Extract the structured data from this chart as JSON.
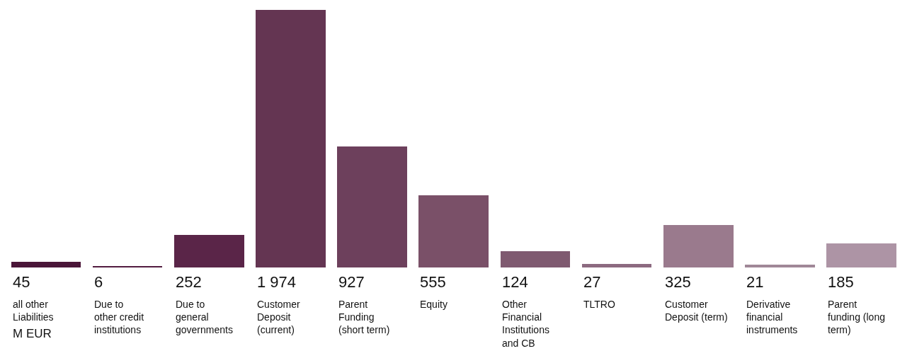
{
  "chart_data": {
    "type": "bar",
    "categories": [
      "all other\nLiabilities",
      "Due to\nother credit\ninstitutions",
      "Due to\ngeneral\ngovernments",
      "Customer\nDeposit\n(current)",
      "Parent\nFunding\n(short term)",
      "Equity",
      "Other\nFinancial\nInstitutions\nand CB",
      "TLTRO",
      "Customer\nDeposit (term)",
      "Derivative\nfinancial\ninstruments",
      "Parent\nfunding (long\nterm)"
    ],
    "values": [
      45,
      6,
      252,
      1974,
      927,
      555,
      124,
      27,
      325,
      21,
      185
    ],
    "value_labels": [
      "45",
      "6",
      "252",
      "1 974",
      "927",
      "555",
      "124",
      "27",
      "325",
      "21",
      "185"
    ],
    "colors": [
      "#4a1538",
      "#521c40",
      "#5a2548",
      "#643552",
      "#6d405c",
      "#7a5068",
      "#7f5a70",
      "#8c6a80",
      "#9a7a8d",
      "#a08797",
      "#ad94a5"
    ],
    "annotations": [
      "M EUR"
    ]
  }
}
